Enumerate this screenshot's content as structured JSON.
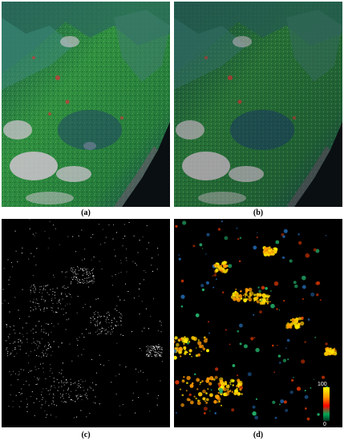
{
  "panels": [
    {
      "id": "a",
      "caption": "(a)",
      "content": "sar-composite-color"
    },
    {
      "id": "b",
      "caption": "(b)",
      "content": "sar-composite-filtered"
    },
    {
      "id": "c",
      "caption": "(c)",
      "content": "binary-change-map"
    },
    {
      "id": "d",
      "caption": "(d)",
      "content": "change-probability-map"
    }
  ],
  "colorbar": {
    "max_label": "100",
    "min_label": "0",
    "colors": [
      "#ffff00",
      "#ff9900",
      "#ff0000",
      "#00aa55",
      "#003322"
    ]
  },
  "colors": {
    "background_dark": "#0b1410",
    "vegetation": "#2f8f3f",
    "urban": "#d9c8d8",
    "sea": "#0a0f12",
    "change_high": "#ffee00"
  }
}
